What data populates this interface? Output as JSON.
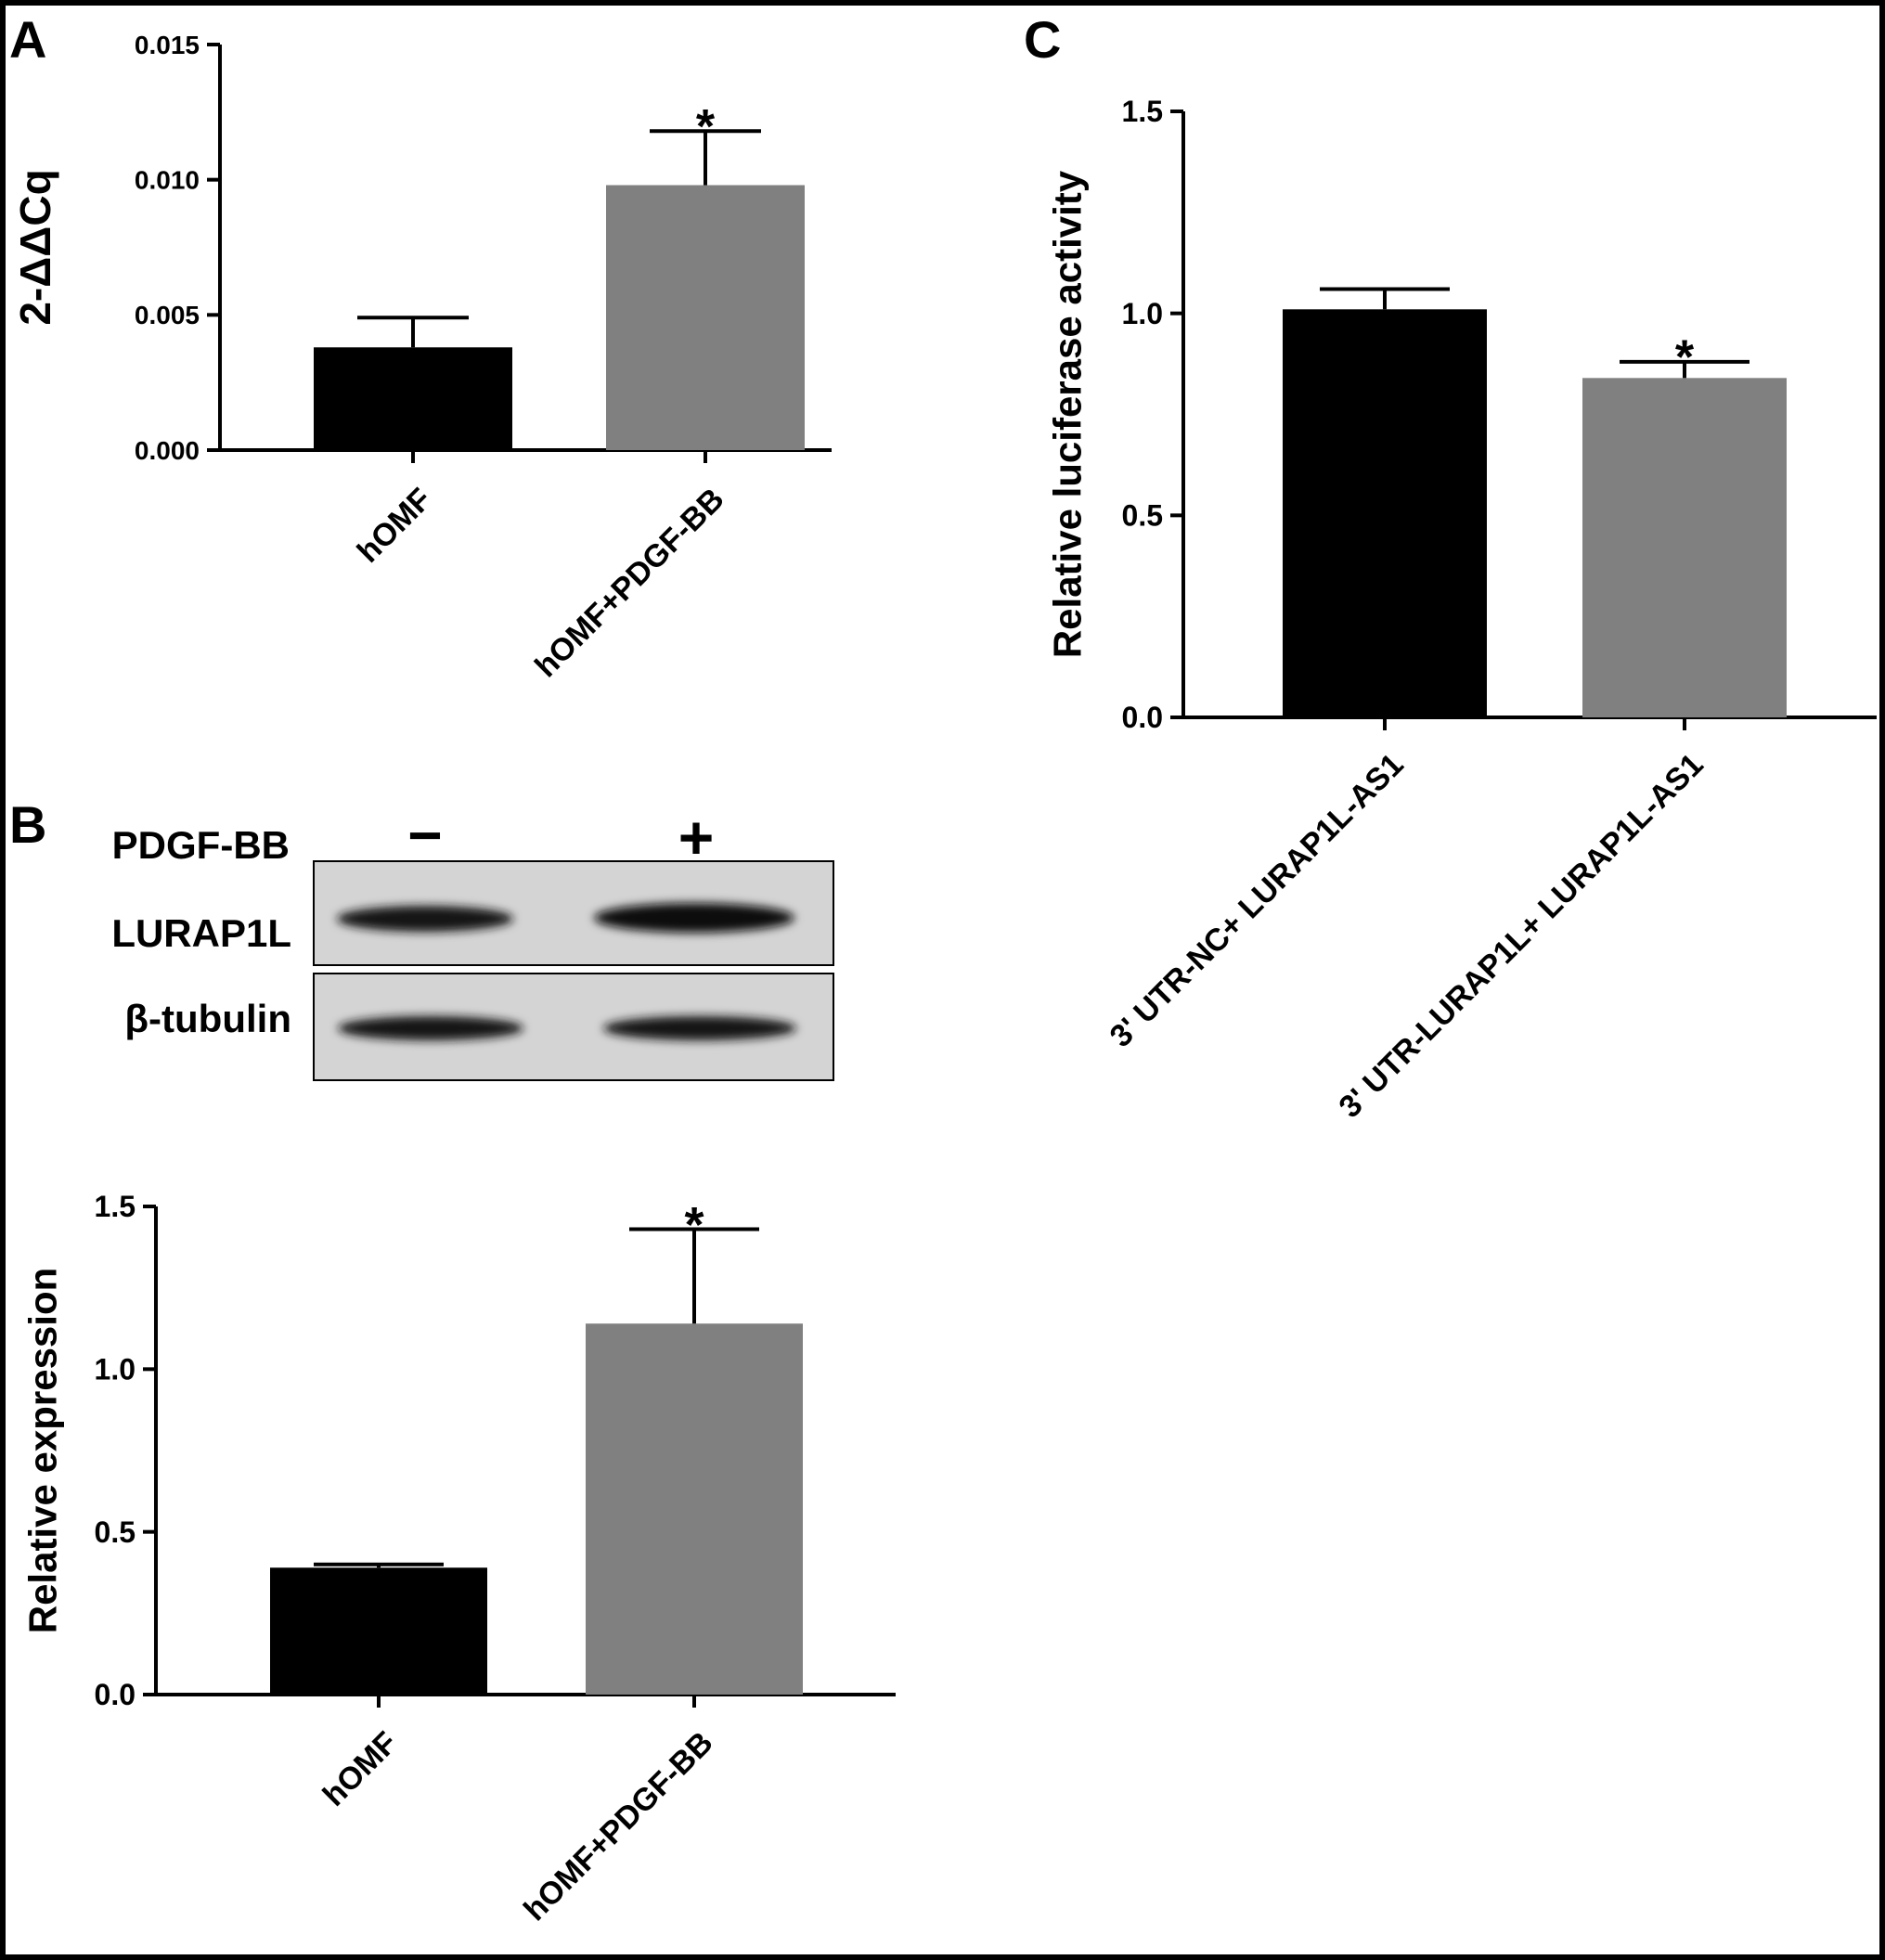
{
  "colors": {
    "frame": "#000000",
    "bar_control": "#000000",
    "bar_treatment": "#808080",
    "axis": "#000000",
    "blot_background": "#d4d4d4"
  },
  "panels": {
    "A": {
      "letter": "A"
    },
    "B": {
      "letter": "B",
      "blot": {
        "treatment_label": "PDGF-BB",
        "treatment_signs": [
          "−",
          "+"
        ],
        "rows": [
          {
            "protein": "LURAP1L"
          },
          {
            "protein": "β-tubulin"
          }
        ]
      }
    },
    "C": {
      "letter": "C"
    }
  },
  "chart_data": [
    {
      "id": "A",
      "type": "bar",
      "title": "",
      "xlabel": "",
      "ylabel": "2-ΔΔCq",
      "categories": [
        "hOMF",
        "hOMF+PDGF-BB"
      ],
      "values": [
        0.0038,
        0.0098
      ],
      "errors": [
        0.0011,
        0.002
      ],
      "significance": [
        "",
        "*"
      ],
      "ylim": [
        0,
        0.015
      ],
      "yticks": [
        0.0,
        0.005,
        0.01,
        0.015
      ],
      "ytick_labels": [
        "0.000",
        "0.005",
        "0.010",
        "0.015"
      ],
      "grid": false
    },
    {
      "id": "B",
      "type": "bar",
      "title": "",
      "xlabel": "",
      "ylabel": "Relative expression",
      "categories": [
        "hOMF",
        "hOMF+PDGF-BB"
      ],
      "values": [
        0.39,
        1.14
      ],
      "errors": [
        0.01,
        0.29
      ],
      "significance": [
        "",
        "*"
      ],
      "ylim": [
        0,
        1.5
      ],
      "yticks": [
        0.0,
        0.5,
        1.0,
        1.5
      ],
      "ytick_labels": [
        "0.0",
        "0.5",
        "1.0",
        "1.5"
      ],
      "grid": false
    },
    {
      "id": "C",
      "type": "bar",
      "title": "",
      "xlabel": "",
      "ylabel": "Relative luciferase activity",
      "categories": [
        "3' UTR-NC+ LURAP1L-AS1",
        "3' UTR-LURAP1L+ LURAP1L-AS1"
      ],
      "values": [
        1.01,
        0.84
      ],
      "errors": [
        0.05,
        0.04
      ],
      "significance": [
        "",
        "*"
      ],
      "ylim": [
        0,
        1.5
      ],
      "yticks": [
        0.0,
        0.5,
        1.0,
        1.5
      ],
      "ytick_labels": [
        "0.0",
        "0.5",
        "1.0",
        "1.5"
      ],
      "grid": false
    }
  ]
}
